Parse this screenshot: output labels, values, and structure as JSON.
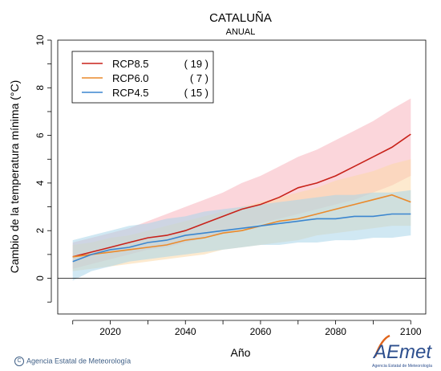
{
  "chart_data": {
    "type": "line",
    "title": "CATALUÑA",
    "subtitle": "ANUAL",
    "xlabel": "Año",
    "ylabel": "Cambio de la temperatura mínima (°C)",
    "xlim": [
      2006,
      2104
    ],
    "ylim": [
      -1.5,
      10
    ],
    "xticks": [
      2020,
      2040,
      2060,
      2080,
      2100
    ],
    "yticks": [
      0,
      2,
      4,
      6,
      8,
      10
    ],
    "grid": false,
    "legend_position": "top-left",
    "zero_line": 0,
    "series": [
      {
        "name": "RCP8.5",
        "count": "( 19 )",
        "color": "#c8221a",
        "band_color": "#f7b4bd",
        "x": [
          2010,
          2015,
          2020,
          2025,
          2030,
          2035,
          2040,
          2045,
          2050,
          2055,
          2060,
          2065,
          2070,
          2075,
          2080,
          2085,
          2090,
          2095,
          2100
        ],
        "values": [
          0.9,
          1.1,
          1.3,
          1.5,
          1.7,
          1.8,
          2.0,
          2.3,
          2.6,
          2.9,
          3.1,
          3.4,
          3.8,
          4.0,
          4.3,
          4.7,
          5.1,
          5.5,
          6.05
        ],
        "upper": [
          1.5,
          1.7,
          1.9,
          2.1,
          2.4,
          2.7,
          3.0,
          3.3,
          3.6,
          4.0,
          4.3,
          4.7,
          5.1,
          5.4,
          5.8,
          6.2,
          6.6,
          7.1,
          7.55
        ],
        "lower": [
          0.4,
          0.6,
          0.8,
          1.0,
          1.2,
          1.3,
          1.5,
          1.7,
          1.9,
          2.1,
          2.3,
          2.5,
          2.7,
          2.9,
          3.1,
          3.3,
          3.6,
          3.9,
          4.3
        ]
      },
      {
        "name": "RCP6.0",
        "count": "(  7 )",
        "color": "#ea8a2c",
        "band_color": "#fbd9a8",
        "x": [
          2010,
          2015,
          2020,
          2025,
          2030,
          2035,
          2040,
          2045,
          2050,
          2055,
          2060,
          2065,
          2070,
          2075,
          2080,
          2085,
          2090,
          2095,
          2100
        ],
        "values": [
          0.9,
          1.0,
          1.1,
          1.2,
          1.3,
          1.4,
          1.6,
          1.7,
          1.9,
          2.0,
          2.2,
          2.4,
          2.5,
          2.7,
          2.9,
          3.1,
          3.3,
          3.5,
          3.2
        ],
        "upper": [
          1.4,
          1.5,
          1.7,
          1.8,
          2.0,
          2.2,
          2.4,
          2.6,
          2.8,
          3.0,
          3.2,
          3.4,
          3.6,
          3.8,
          4.1,
          4.3,
          4.5,
          4.8,
          5.0
        ],
        "lower": [
          0.3,
          0.4,
          0.5,
          0.6,
          0.7,
          0.8,
          0.9,
          1.0,
          1.2,
          1.3,
          1.4,
          1.5,
          1.6,
          1.8,
          1.9,
          2.0,
          2.1,
          2.2,
          2.2
        ]
      },
      {
        "name": "RCP4.5",
        "count": "( 15 )",
        "color": "#3b86cf",
        "band_color": "#a9d6ea",
        "x": [
          2010,
          2015,
          2020,
          2025,
          2030,
          2035,
          2040,
          2045,
          2050,
          2055,
          2060,
          2065,
          2070,
          2075,
          2080,
          2085,
          2090,
          2095,
          2100
        ],
        "values": [
          0.7,
          1.0,
          1.2,
          1.3,
          1.5,
          1.6,
          1.8,
          1.9,
          2.0,
          2.1,
          2.2,
          2.3,
          2.4,
          2.5,
          2.5,
          2.6,
          2.6,
          2.7,
          2.7
        ],
        "upper": [
          1.6,
          1.8,
          2.0,
          2.2,
          2.3,
          2.5,
          2.6,
          2.8,
          2.9,
          3.0,
          3.1,
          3.2,
          3.3,
          3.4,
          3.5,
          3.5,
          3.6,
          3.6,
          3.7
        ],
        "lower": [
          -0.1,
          0.3,
          0.5,
          0.7,
          0.8,
          0.9,
          1.0,
          1.1,
          1.2,
          1.3,
          1.4,
          1.4,
          1.5,
          1.5,
          1.6,
          1.6,
          1.7,
          1.7,
          1.8
        ]
      }
    ]
  },
  "footer": {
    "credit_text": "Agencia Estatal de Meteorología",
    "copyright_symbol": "C",
    "logo_text": "AEmet",
    "logo_subtext": "Agencia Estatal de Meteorología"
  }
}
